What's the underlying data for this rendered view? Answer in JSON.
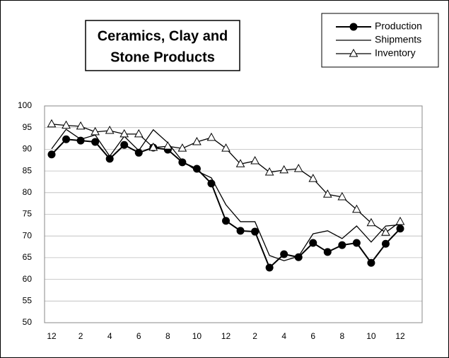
{
  "chart_data": {
    "type": "line",
    "title": [
      "Ceramics, Clay and",
      "Stone Products"
    ],
    "categories": [
      12,
      null,
      2,
      null,
      4,
      null,
      6,
      null,
      8,
      null,
      10,
      null,
      12,
      null,
      2,
      null,
      4,
      null,
      6,
      null,
      8,
      null,
      10,
      null,
      12
    ],
    "series": [
      {
        "name": "Production",
        "color": "#000000",
        "marker": "circle",
        "values": [
          88.8,
          92.3,
          92.0,
          91.7,
          87.8,
          91.0,
          89.2,
          90.4,
          89.9,
          87.0,
          85.5,
          82.1,
          73.5,
          71.2,
          71.0,
          62.7,
          65.8,
          65.1,
          68.4,
          66.3,
          67.9,
          68.4,
          63.8,
          68.2,
          71.7
        ]
      },
      {
        "name": "Shipments",
        "color": "#000000",
        "marker": "none",
        "values": [
          90.1,
          94.6,
          92.3,
          93.3,
          88.4,
          93.0,
          89.7,
          94.5,
          91.5,
          87.3,
          85.0,
          83.4,
          77.2,
          73.3,
          73.3,
          65.5,
          64.3,
          65.3,
          70.5,
          71.2,
          69.4,
          72.3,
          68.6,
          72.3,
          72.6
        ]
      },
      {
        "name": "Inventory",
        "color": "#000000",
        "marker": "triangle",
        "values": [
          95.8,
          95.5,
          95.3,
          94.0,
          94.3,
          93.5,
          93.5,
          90.4,
          90.7,
          90.2,
          91.7,
          92.7,
          90.2,
          86.6,
          87.3,
          84.7,
          85.2,
          85.5,
          83.2,
          79.6,
          79.0,
          76.1,
          73.0,
          70.8,
          73.3
        ]
      }
    ],
    "ylim": [
      50,
      100
    ],
    "yticks": [
      50,
      55,
      60,
      65,
      70,
      75,
      80,
      85,
      90,
      95,
      100
    ],
    "grid": true
  }
}
